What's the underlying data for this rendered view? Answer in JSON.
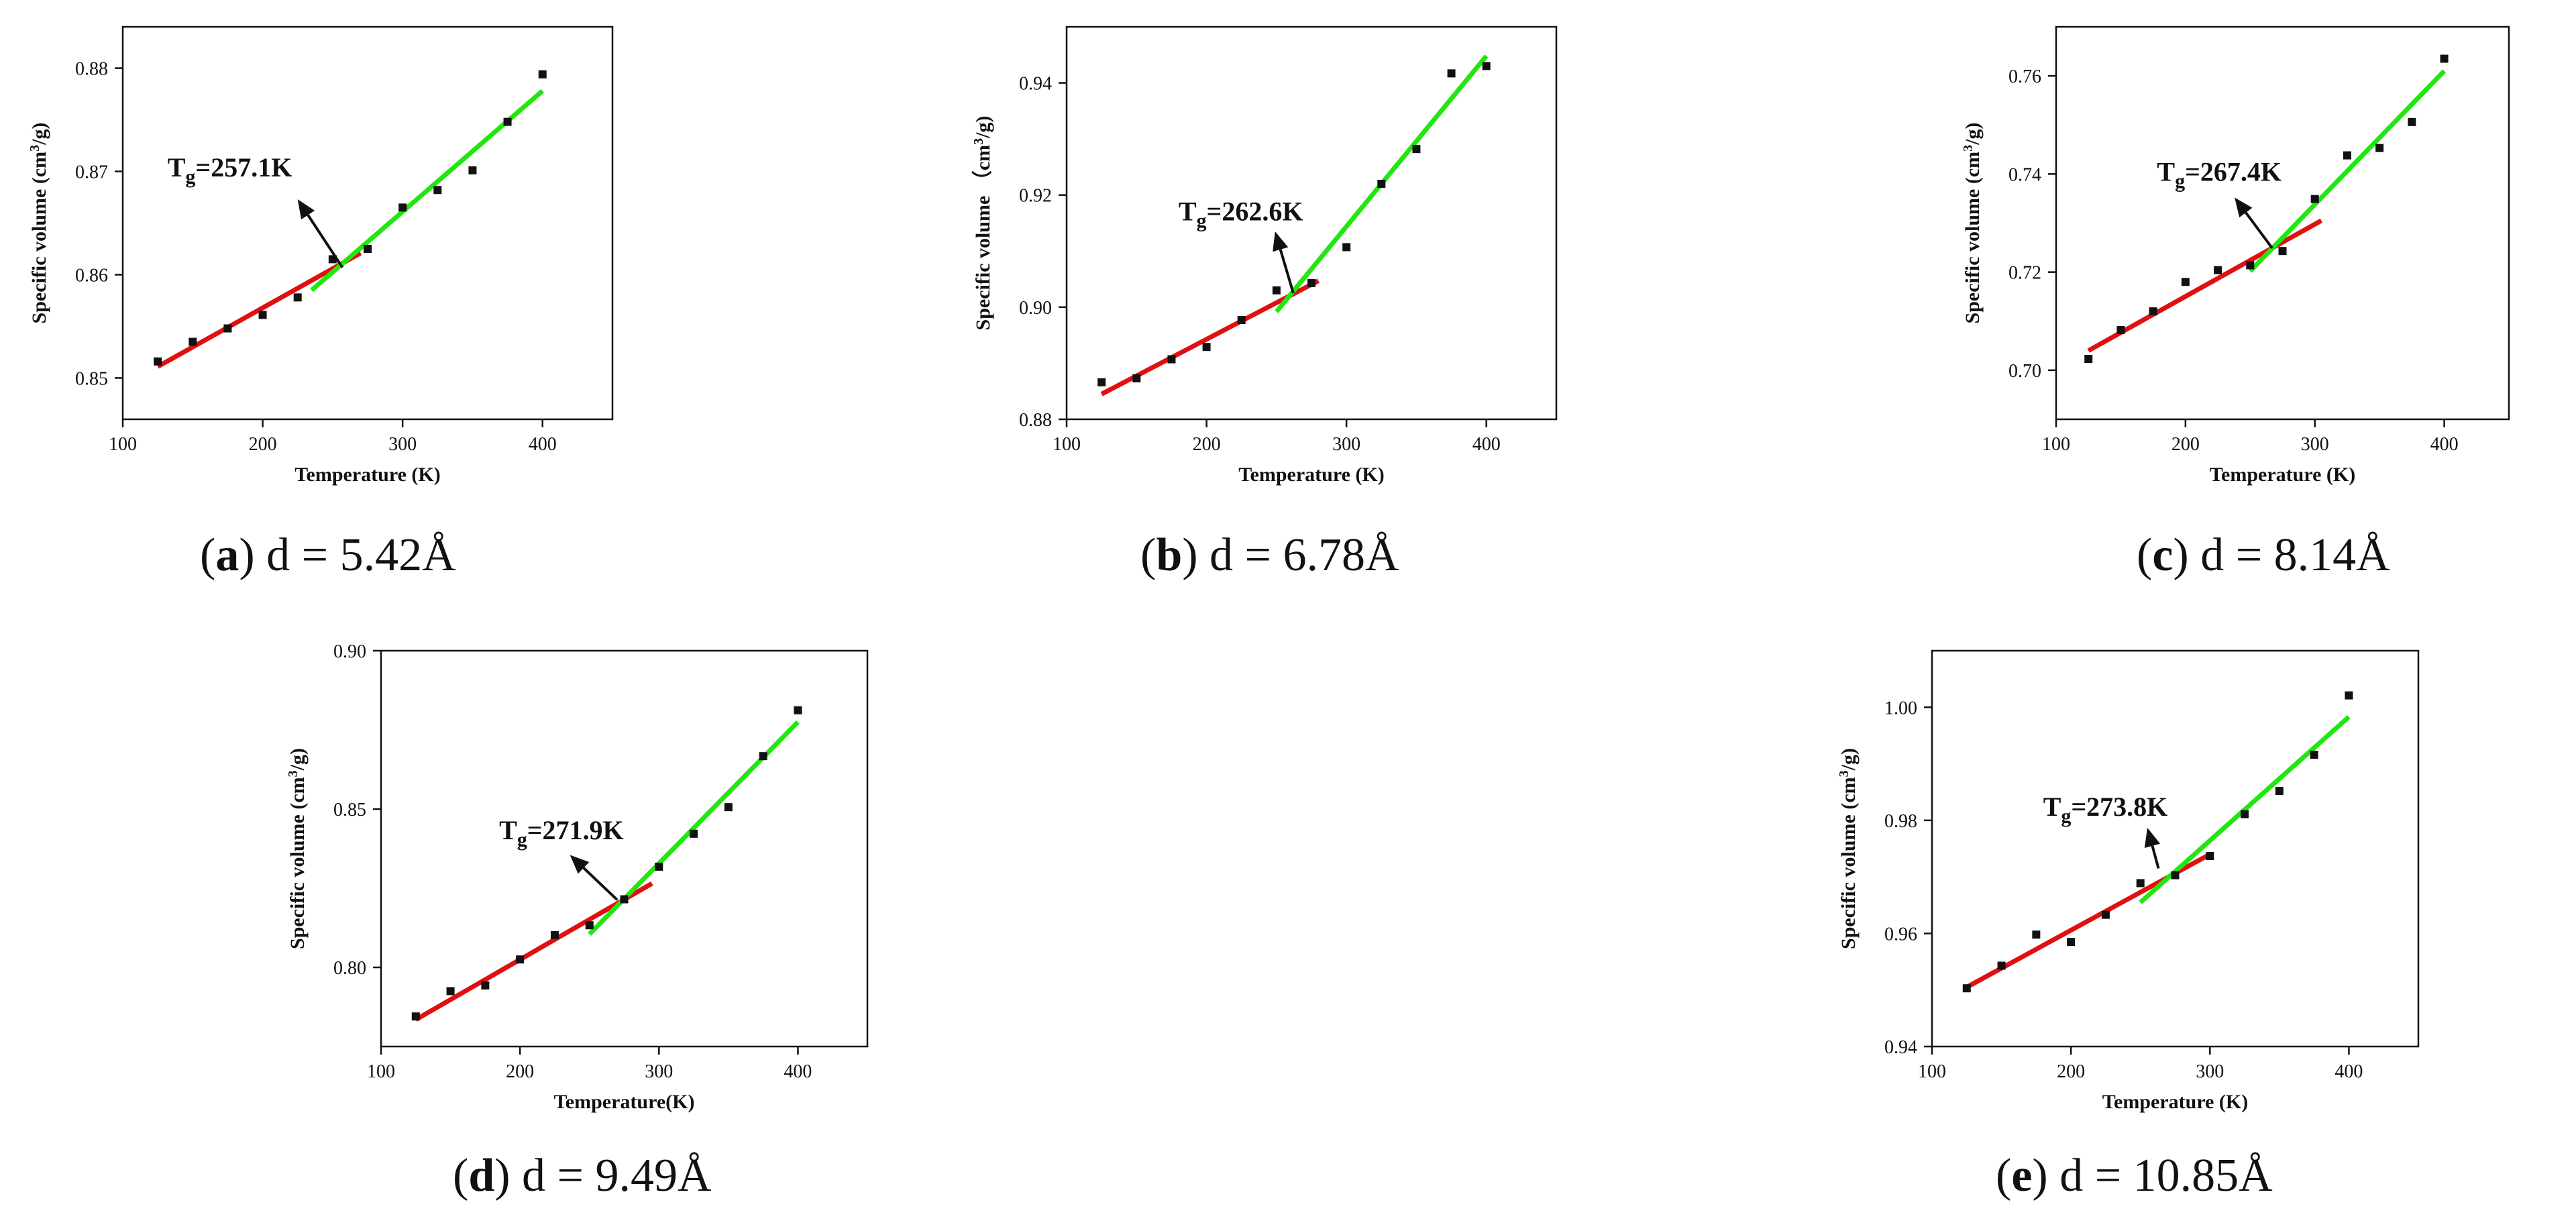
{
  "chart_data": [
    {
      "type": "scatter",
      "panel_letter": "a",
      "caption_rest": ") d = 5.42Å",
      "xlabel": "Temperature (K)",
      "ylabel_main": "Specific volume (cm",
      "ylabel_sup": "3",
      "ylabel_tail": "/g)",
      "xlim": [
        100,
        450
      ],
      "ylim": [
        0.846,
        0.884
      ],
      "xticks": [
        100,
        200,
        300,
        400
      ],
      "xtick_labels": [
        "100",
        "200",
        "300",
        "400"
      ],
      "yticks": [
        0.85,
        0.86,
        0.87,
        0.88
      ],
      "ytick_labels": [
        "0.85",
        "0.86",
        "0.87",
        "0.88"
      ],
      "series": [
        {
          "name": "Specific volume",
          "x": [
            125,
            150,
            175,
            200,
            225,
            250,
            275,
            300,
            325,
            350,
            375,
            400
          ],
          "y": [
            0.8516,
            0.8535,
            0.8548,
            0.8561,
            0.8578,
            0.8615,
            0.8625,
            0.8665,
            0.8682,
            0.8701,
            0.8748,
            0.8794
          ]
        }
      ],
      "red_fit": {
        "x": [
          125,
          270
        ],
        "y": [
          0.8511,
          0.8621
        ]
      },
      "green_fit": {
        "x": [
          235,
          400
        ],
        "y": [
          0.8585,
          0.8778
        ]
      },
      "tg_label": "T",
      "tg_sub": "g",
      "tg_value": "=257.1K",
      "tg": 257.1,
      "label_anchor": [
        132,
        0.8695
      ],
      "arrow_from": [
        257,
        0.8607
      ],
      "arrow_to": [
        225,
        0.8673
      ]
    },
    {
      "type": "scatter",
      "panel_letter": "b",
      "caption_rest": ") d = 6.78Å",
      "xlabel": "Temperature (K)",
      "ylabel_main": "Specific volume （cm",
      "ylabel_sup": "3",
      "ylabel_tail": "/g)",
      "xlim": [
        100,
        450
      ],
      "ylim": [
        0.88,
        0.95
      ],
      "xticks": [
        100,
        200,
        300,
        400
      ],
      "xtick_labels": [
        "100",
        "200",
        "300",
        "400"
      ],
      "yticks": [
        0.88,
        0.9,
        0.92,
        0.94
      ],
      "ytick_labels": [
        "0.88",
        "0.90",
        "0.92",
        "0.94"
      ],
      "series": [
        {
          "name": "Specific volume",
          "x": [
            125,
            150,
            175,
            200,
            225,
            250,
            275,
            300,
            325,
            350,
            375,
            400
          ],
          "y": [
            0.8866,
            0.8873,
            0.8907,
            0.8929,
            0.8977,
            0.903,
            0.9043,
            0.9107,
            0.922,
            0.9282,
            0.9417,
            0.943
          ]
        }
      ],
      "red_fit": {
        "x": [
          125,
          280
        ],
        "y": [
          0.8845,
          0.9047
        ]
      },
      "green_fit": {
        "x": [
          250,
          400
        ],
        "y": [
          0.8992,
          0.9448
        ]
      },
      "tg_label": "T",
      "tg_sub": "g",
      "tg_value": "=262.6K",
      "tg": 262.6,
      "label_anchor": [
        180,
        0.9155
      ],
      "arrow_from": [
        262,
        0.9025
      ],
      "arrow_to": [
        249,
        0.9135
      ]
    },
    {
      "type": "scatter",
      "panel_letter": "c",
      "caption_rest": ") d = 8.14Å",
      "xlabel": "Temperature (K)",
      "ylabel_main": "Specific volume (cm",
      "ylabel_sup": "3",
      "ylabel_tail": "/g)",
      "xlim": [
        100,
        450
      ],
      "ylim": [
        0.69,
        0.77
      ],
      "xticks": [
        100,
        200,
        300,
        400
      ],
      "xtick_labels": [
        "100",
        "200",
        "300",
        "400"
      ],
      "yticks": [
        0.7,
        0.72,
        0.74,
        0.76
      ],
      "ytick_labels": [
        "0.70",
        "0.72",
        "0.74",
        "0.76"
      ],
      "series": [
        {
          "name": "Specific volume",
          "x": [
            125,
            150,
            175,
            200,
            225,
            250,
            275,
            300,
            325,
            350,
            375,
            400
          ],
          "y": [
            0.7023,
            0.7082,
            0.712,
            0.718,
            0.7204,
            0.7214,
            0.7243,
            0.7349,
            0.7438,
            0.7453,
            0.7506,
            0.7635
          ]
        }
      ],
      "red_fit": {
        "x": [
          125,
          305
        ],
        "y": [
          0.704,
          0.7305
        ]
      },
      "green_fit": {
        "x": [
          250,
          400
        ],
        "y": [
          0.7202,
          0.761
        ]
      },
      "tg_label": "T",
      "tg_sub": "g",
      "tg_value": "=267.4K",
      "tg": 267.4,
      "label_anchor": [
        178,
        0.7386
      ],
      "arrow_from": [
        267,
        0.7249
      ],
      "arrow_to": [
        238,
        0.7352
      ]
    },
    {
      "type": "scatter",
      "panel_letter": "d",
      "caption_rest": ") d = 9.49Å",
      "xlabel": "Temperature(K)",
      "ylabel_main": "Specific volume (cm",
      "ylabel_sup": "3",
      "ylabel_tail": "/g)",
      "xlim": [
        100,
        450
      ],
      "ylim": [
        0.775,
        0.9
      ],
      "xticks": [
        100,
        200,
        300,
        400
      ],
      "xtick_labels": [
        "100",
        "200",
        "300",
        "400"
      ],
      "yticks": [
        0.8,
        0.85,
        0.9
      ],
      "ytick_labels": [
        "0.80",
        "0.85",
        "0.90"
      ],
      "series": [
        {
          "name": "Specific volume",
          "x": [
            125,
            150,
            175,
            200,
            225,
            250,
            275,
            300,
            325,
            350,
            375,
            400
          ],
          "y": [
            0.7845,
            0.7925,
            0.7943,
            0.8025,
            0.8102,
            0.8133,
            0.8215,
            0.8318,
            0.8422,
            0.8506,
            0.8667,
            0.8812
          ]
        }
      ],
      "red_fit": {
        "x": [
          125,
          295
        ],
        "y": [
          0.7835,
          0.8265
        ]
      },
      "green_fit": {
        "x": [
          250,
          400
        ],
        "y": [
          0.8105,
          0.8775
        ]
      },
      "tg_label": "T",
      "tg_sub": "g",
      "tg_value": "=271.9K",
      "tg": 271.9,
      "label_anchor": [
        185,
        0.8405
      ],
      "arrow_from": [
        270,
        0.8213
      ],
      "arrow_to": [
        236,
        0.8355
      ]
    },
    {
      "type": "scatter",
      "panel_letter": "e",
      "caption_rest": ") d = 10.85Å",
      "xlabel": "Temperature (K)",
      "ylabel_main": "Specific volume (cm",
      "ylabel_sup": "3",
      "ylabel_tail": "/g)",
      "xlim": [
        100,
        450
      ],
      "ylim": [
        0.94,
        1.01
      ],
      "xticks": [
        100,
        200,
        300,
        400
      ],
      "xtick_labels": [
        "100",
        "200",
        "300",
        "400"
      ],
      "yticks": [
        0.94,
        0.96,
        0.98,
        1.0
      ],
      "ytick_labels": [
        "0.94",
        "0.96",
        "0.98",
        "1.00"
      ],
      "series": [
        {
          "name": "Specific volume",
          "x": [
            125,
            150,
            175,
            200,
            225,
            250,
            275,
            300,
            325,
            350,
            375,
            400
          ],
          "y": [
            0.9503,
            0.9543,
            0.9598,
            0.9585,
            0.9633,
            0.9689,
            0.9703,
            0.9737,
            0.9811,
            0.9852,
            0.9916,
            1.0021
          ]
        }
      ],
      "red_fit": {
        "x": [
          125,
          300
        ],
        "y": [
          0.9505,
          0.974
        ]
      },
      "green_fit": {
        "x": [
          250,
          400
        ],
        "y": [
          0.9655,
          0.9983
        ]
      },
      "tg_label": "T",
      "tg_sub": "g",
      "tg_value": "=273.8K",
      "tg": 273.8,
      "label_anchor": [
        180,
        0.9808
      ],
      "arrow_from": [
        263,
        0.9715
      ],
      "arrow_to": [
        255,
        0.9787
      ]
    }
  ]
}
